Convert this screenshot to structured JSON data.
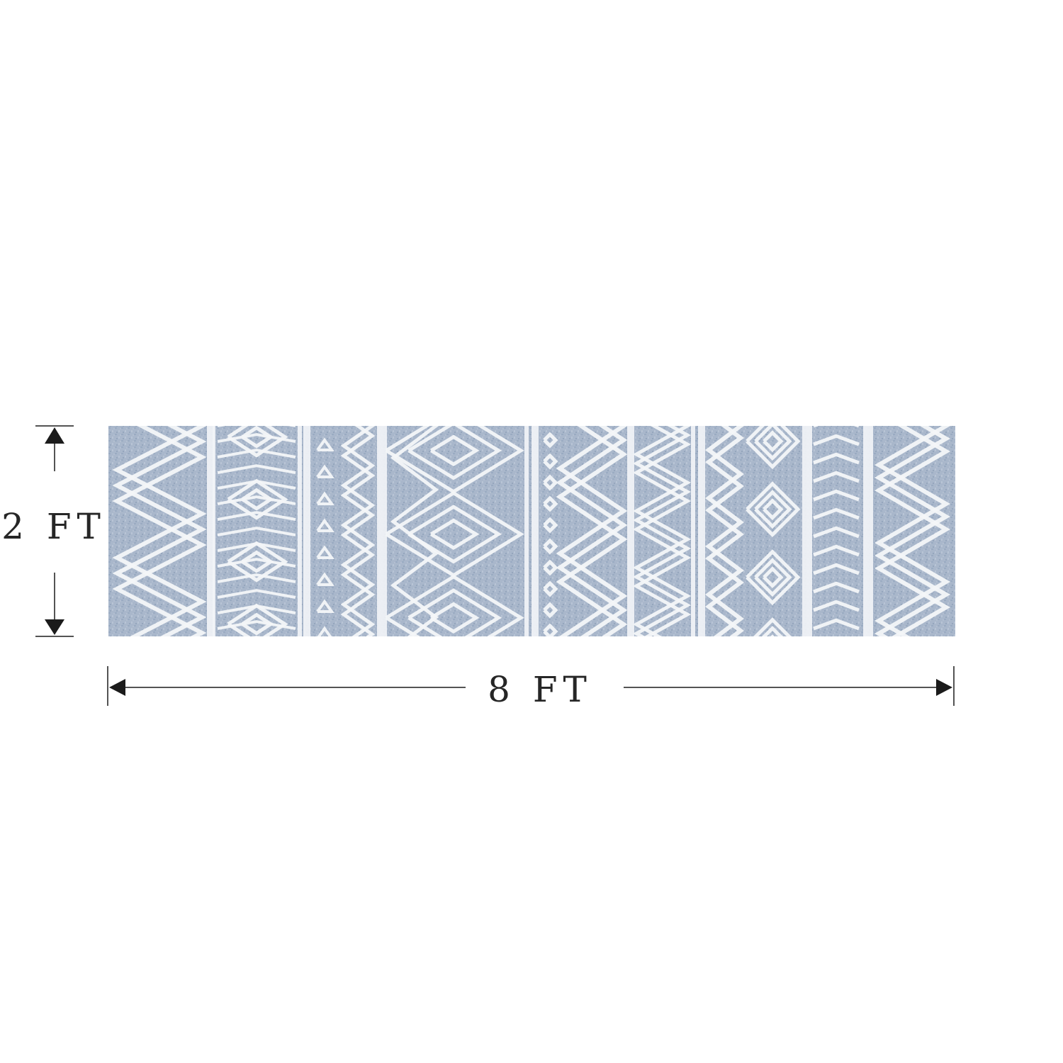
{
  "dimensions": {
    "height": {
      "value": 2,
      "unit": "FT",
      "label": "2 FT"
    },
    "width": {
      "value": 8,
      "unit": "FT",
      "label": "8 FT"
    }
  },
  "rug": {
    "base_color": "#a9b7cb",
    "base_color_dark": "#8f9fb6",
    "pattern_color": "#f3f5f8"
  },
  "colors": {
    "line": "#1b1b1b",
    "label": "#262626"
  }
}
